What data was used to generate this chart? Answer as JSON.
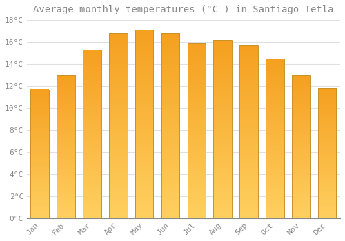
{
  "title": "Average monthly temperatures (°C ) in Santiago Tetla",
  "months": [
    "Jan",
    "Feb",
    "Mar",
    "Apr",
    "May",
    "Jun",
    "Jul",
    "Aug",
    "Sep",
    "Oct",
    "Nov",
    "Dec"
  ],
  "temperatures": [
    11.7,
    13.0,
    15.3,
    16.8,
    17.1,
    16.8,
    15.9,
    16.2,
    15.7,
    14.5,
    13.0,
    11.8
  ],
  "color_bottom": "#FFD060",
  "color_top": "#F5A020",
  "bar_edge_color": "#C8922A",
  "ylim": [
    0,
    18
  ],
  "yticks": [
    0,
    2,
    4,
    6,
    8,
    10,
    12,
    14,
    16,
    18
  ],
  "ytick_labels": [
    "0°C",
    "2°C",
    "4°C",
    "6°C",
    "8°C",
    "10°C",
    "12°C",
    "14°C",
    "16°C",
    "18°C"
  ],
  "background_color": "#FFFFFF",
  "grid_color": "#E0E0E0",
  "title_fontsize": 10,
  "tick_fontsize": 8,
  "tick_color": "#888888",
  "bar_width": 0.7
}
